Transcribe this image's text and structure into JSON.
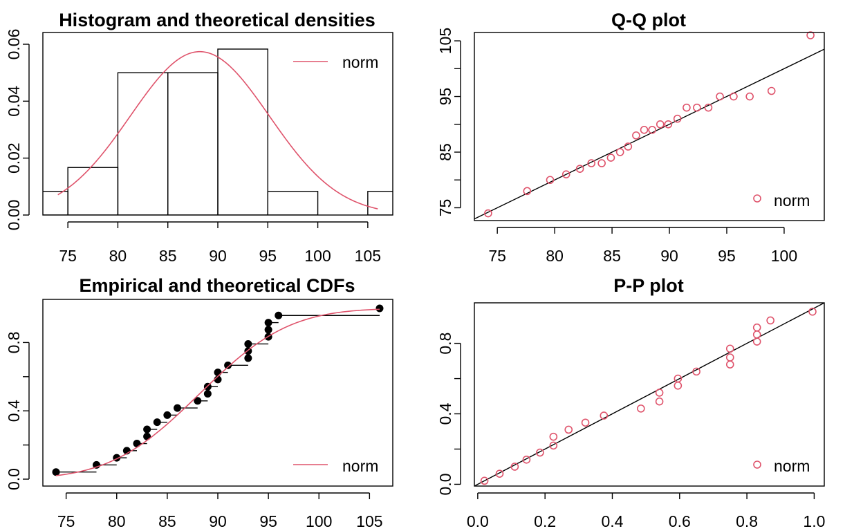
{
  "colors": {
    "fit": "#DF536B",
    "ink": "#000000",
    "background": "#FFFFFF"
  },
  "chart_data": [
    {
      "type": "bar",
      "title": "Histogram and theoretical densities",
      "xlim": [
        72.5,
        107.5
      ],
      "ylim": [
        0,
        0.06
      ],
      "x_ticks": [
        75,
        80,
        85,
        90,
        95,
        100,
        105
      ],
      "y_ticks": [
        "0.00",
        "0.02",
        "0.04",
        "0.06"
      ],
      "bins": [
        {
          "from": 70,
          "to": 75,
          "density": 0.0083
        },
        {
          "from": 75,
          "to": 80,
          "density": 0.0167
        },
        {
          "from": 80,
          "to": 85,
          "density": 0.05
        },
        {
          "from": 85,
          "to": 90,
          "density": 0.05
        },
        {
          "from": 90,
          "to": 95,
          "density": 0.0583
        },
        {
          "from": 95,
          "to": 100,
          "density": 0.0083
        },
        {
          "from": 100,
          "to": 105,
          "density": 0
        },
        {
          "from": 105,
          "to": 110,
          "density": 0.0083
        }
      ],
      "curve": {
        "name": "norm",
        "mean": 88.2,
        "sd": 6.95,
        "from": 74,
        "to": 106
      },
      "legend": {
        "entries": [
          "norm"
        ],
        "position": "top-right"
      }
    },
    {
      "type": "scatter",
      "title": "Q-Q plot",
      "xlim": [
        73,
        103.5
      ],
      "ylim": [
        72.7,
        106.5
      ],
      "x_ticks": [
        75,
        80,
        85,
        90,
        95,
        100
      ],
      "y_ticks": [
        75,
        85,
        95,
        105
      ],
      "y_minor_ticks": [
        80,
        90,
        100
      ],
      "points": [
        [
          74.2,
          74
        ],
        [
          77.6,
          78
        ],
        [
          79.6,
          80
        ],
        [
          81,
          81
        ],
        [
          82.2,
          82
        ],
        [
          83.2,
          83
        ],
        [
          84.1,
          83
        ],
        [
          84.9,
          84
        ],
        [
          85.7,
          85
        ],
        [
          86.4,
          86
        ],
        [
          87.1,
          88
        ],
        [
          87.8,
          89
        ],
        [
          88.5,
          89
        ],
        [
          89.2,
          90
        ],
        [
          89.9,
          90
        ],
        [
          90.7,
          91
        ],
        [
          91.5,
          93
        ],
        [
          92.4,
          93
        ],
        [
          93.4,
          93
        ],
        [
          94.4,
          95
        ],
        [
          95.6,
          95
        ],
        [
          97,
          95
        ],
        [
          98.9,
          96
        ],
        [
          102.3,
          106
        ]
      ],
      "reference_line": [
        [
          73,
          73
        ],
        [
          103.5,
          103.5
        ]
      ],
      "legend": {
        "entries": [
          "norm"
        ],
        "position": "bottom-right"
      }
    },
    {
      "type": "line",
      "title": "Empirical and theoretical CDFs",
      "xlim": [
        72.7,
        107.3
      ],
      "ylim": [
        0,
        1
      ],
      "x_ticks": [
        75,
        80,
        85,
        90,
        95,
        100,
        105
      ],
      "y_ticks": [
        "0.0",
        "0.4",
        "0.8"
      ],
      "y_minor_ticks": [
        0.2,
        0.6
      ],
      "data": [
        74,
        78,
        80,
        81,
        82,
        83,
        83,
        84,
        85,
        86,
        88,
        89,
        89,
        90,
        90,
        91,
        93,
        93,
        93,
        95,
        95,
        95,
        96,
        106
      ],
      "curve": {
        "name": "norm",
        "mean": 88.2,
        "sd": 6.95,
        "from": 74,
        "to": 106
      },
      "legend": {
        "entries": [
          "norm"
        ],
        "position": "bottom-right"
      }
    },
    {
      "type": "scatter",
      "title": "P-P plot",
      "xlim": [
        -0.01,
        1.03
      ],
      "ylim": [
        -0.01,
        1.03
      ],
      "x_ticks": [
        "0.0",
        "0.2",
        "0.4",
        "0.6",
        "0.8",
        "1.0"
      ],
      "y_ticks": [
        "0.0",
        "0.4",
        "0.8"
      ],
      "y_minor_ticks": [
        0.2,
        0.6
      ],
      "points": [
        [
          0.02,
          0.02
        ],
        [
          0.065,
          0.06
        ],
        [
          0.11,
          0.1
        ],
        [
          0.145,
          0.14
        ],
        [
          0.185,
          0.18
        ],
        [
          0.225,
          0.22
        ],
        [
          0.225,
          0.27
        ],
        [
          0.27,
          0.31
        ],
        [
          0.32,
          0.35
        ],
        [
          0.375,
          0.39
        ],
        [
          0.485,
          0.43
        ],
        [
          0.54,
          0.47
        ],
        [
          0.54,
          0.52
        ],
        [
          0.595,
          0.56
        ],
        [
          0.595,
          0.6
        ],
        [
          0.65,
          0.64
        ],
        [
          0.75,
          0.68
        ],
        [
          0.75,
          0.72
        ],
        [
          0.75,
          0.77
        ],
        [
          0.83,
          0.81
        ],
        [
          0.83,
          0.85
        ],
        [
          0.83,
          0.89
        ],
        [
          0.87,
          0.93
        ],
        [
          0.995,
          0.98
        ]
      ],
      "reference_line": [
        [
          -0.01,
          -0.01
        ],
        [
          1.03,
          1.03
        ]
      ],
      "legend": {
        "entries": [
          "norm"
        ],
        "position": "bottom-right"
      }
    }
  ]
}
